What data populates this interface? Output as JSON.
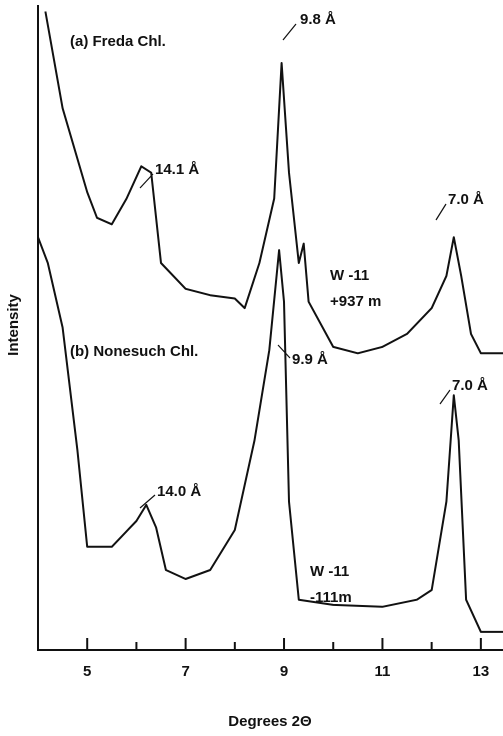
{
  "chart_data": {
    "type": "line",
    "x_label": "Degrees   2Θ",
    "y_label": "Intensity",
    "xlim": [
      4,
      13.45
    ],
    "ylim": [
      0,
      100
    ],
    "xticks": [
      5,
      7,
      9,
      11,
      13
    ],
    "xminorticks": [
      4,
      6,
      8,
      10,
      12
    ],
    "color": "#111111",
    "annotations": [
      "(a) Freda Chl.",
      "(b) Nonesuch Chl.",
      "9.8 Å",
      "14.1 Å",
      "7.0 Å",
      "W -11",
      "+937 m",
      "9.9 Å",
      "14.0 Å",
      "7.0 Å",
      "W -11",
      "-111m"
    ],
    "series": [
      {
        "name": "(a) Freda Chl.",
        "x": [
          4.15,
          4.5,
          5,
          5.2,
          5.5,
          5.8,
          6.1,
          6.3,
          6.5,
          7,
          7.5,
          8,
          8.2,
          8.5,
          8.8,
          8.95,
          9.1,
          9.3,
          9.4,
          9.5,
          10,
          10.5,
          11,
          11.5,
          12,
          12.3,
          12.45,
          12.6,
          12.8,
          13,
          13.45
        ],
        "values": [
          99,
          84,
          71,
          67,
          66,
          70,
          75,
          74,
          60,
          56,
          55,
          54.5,
          53,
          60,
          70,
          91,
          74,
          60,
          63,
          54,
          47,
          46,
          47,
          49,
          53,
          58,
          64,
          58,
          49,
          46,
          46
        ]
      },
      {
        "name": "(b) Nonesuch Chl.",
        "x": [
          4,
          4.2,
          4.5,
          4.8,
          5,
          5.5,
          6,
          6.2,
          6.4,
          6.6,
          7,
          7.5,
          8,
          8.4,
          8.7,
          8.9,
          9,
          9.1,
          9.3,
          10,
          11,
          11.7,
          12,
          12.3,
          12.45,
          12.55,
          12.7,
          13,
          13.45
        ],
        "values": [
          64,
          60,
          50,
          31,
          16,
          16,
          20,
          22.5,
          19,
          12.4,
          11,
          12.4,
          18.6,
          32.5,
          46.5,
          62,
          54,
          23,
          7.8,
          7,
          6.7,
          7.8,
          9.3,
          23,
          39.5,
          32.5,
          7.8,
          2.8,
          2.8
        ]
      }
    ]
  }
}
